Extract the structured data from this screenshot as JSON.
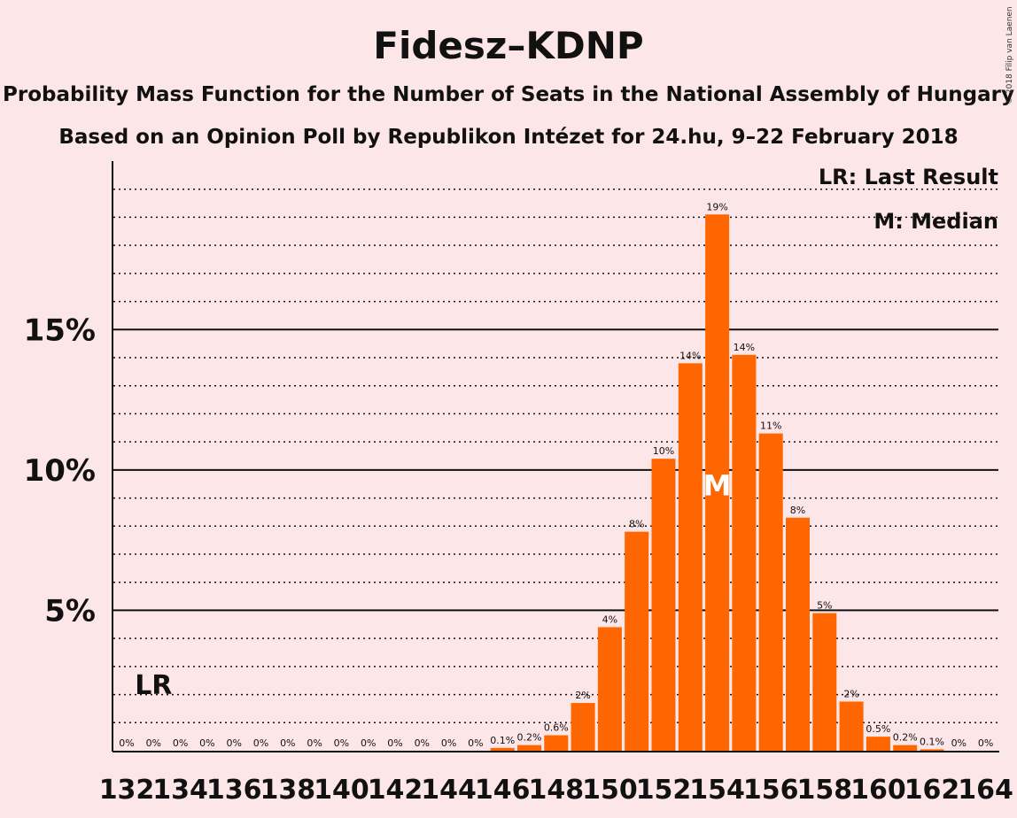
{
  "chart_data": {
    "type": "bar",
    "title": "Fidesz–KDNP",
    "subtitle": "Probability Mass Function for the Number of Seats in the National Assembly of Hungary",
    "subtitle2": "Based on an Opinion Poll by Republikon Intézet for 24.hu, 9–22 February 2018",
    "copyright": "© 2018 Filip van Laenen",
    "legend": {
      "lr": "LR: Last Result",
      "median": "M: Median",
      "placement": "top-right"
    },
    "markers": {
      "last_result": {
        "x": 133,
        "label": "LR"
      },
      "median": {
        "x": 154,
        "label": "M"
      }
    },
    "x": [
      132,
      133,
      134,
      135,
      136,
      137,
      138,
      139,
      140,
      141,
      142,
      143,
      144,
      145,
      146,
      147,
      148,
      149,
      150,
      151,
      152,
      153,
      154,
      155,
      156,
      157,
      158,
      159,
      160,
      161,
      162,
      163,
      164
    ],
    "values": [
      0,
      0,
      0,
      0,
      0,
      0,
      0,
      0,
      0,
      0,
      0,
      0,
      0,
      0,
      0.1,
      0.2,
      0.55,
      1.7,
      4.4,
      7.8,
      10.4,
      13.8,
      19.1,
      14.1,
      11.3,
      8.3,
      4.9,
      1.75,
      0.5,
      0.2,
      0.05,
      0,
      0
    ],
    "value_labels": [
      "0%",
      "0%",
      "0%",
      "0%",
      "0%",
      "0%",
      "0%",
      "0%",
      "0%",
      "0%",
      "0%",
      "0%",
      "0%",
      "0%",
      "0.1%",
      "0.2%",
      "0.6%",
      "2%",
      "4%",
      "8%",
      "10%",
      "14%",
      "19%",
      "14%",
      "11%",
      "8%",
      "5%",
      "2%",
      "0.5%",
      "0.2%",
      "0.1%",
      "0%",
      "0%"
    ],
    "xtick_labels": [
      "132",
      "134",
      "136",
      "138",
      "140",
      "142",
      "144",
      "146",
      "148",
      "150",
      "152",
      "154",
      "156",
      "158",
      "160",
      "162",
      "164"
    ],
    "yticks": [
      5,
      10,
      15
    ],
    "ytick_labels": [
      "5%",
      "10%",
      "15%"
    ],
    "ylim": [
      0,
      21
    ],
    "grid": true,
    "bar_color": "#ff6600"
  }
}
